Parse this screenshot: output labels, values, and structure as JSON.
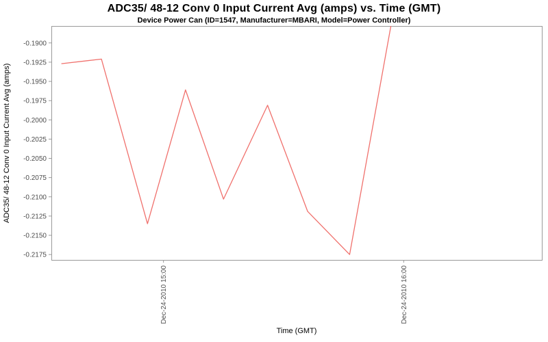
{
  "chart_data": {
    "type": "line",
    "title": "ADC35/ 48-12 Conv 0 Input Current Avg (amps) vs. Time (GMT)",
    "subtitle": "Device Power Can (ID=1547, Manufacturer=MBARI, Model=Power Controller)",
    "xlabel": "Time (GMT)",
    "ylabel": "ADC35/ 48-12 Conv 0 Input Current Avg (amps)",
    "legend": "none",
    "grid": false,
    "x_axis_note": "x values are minutes after Dec-24-2010 14:00 GMT; last point rises above the visible axis range and is clipped at the plot top",
    "xlim": [
      32,
      154.5
    ],
    "ylim": [
      -0.2182,
      -0.1878
    ],
    "x_ticks": [
      {
        "x": 60,
        "label": "Dec-24-2010 15:00"
      },
      {
        "x": 120,
        "label": "Dec-24-2010 16:00"
      }
    ],
    "y_tick_labels": [
      "-0.1900",
      "-0.1925",
      "-0.1950",
      "-0.1975",
      "-0.2000",
      "-0.2025",
      "-0.2050",
      "-0.2075",
      "-0.2100",
      "-0.2125",
      "-0.2150",
      "-0.2175"
    ],
    "series": [
      {
        "name": "ADC35/ 48-12 Conv 0 Input Current Avg",
        "color": "#f0706c",
        "x": [
          34.5,
          44.5,
          56.0,
          65.5,
          75.0,
          86.0,
          96.0,
          106.5,
          117.5
        ],
        "y": [
          -0.1927,
          -0.1921,
          -0.2135,
          -0.1961,
          -0.2103,
          -0.1981,
          -0.2119,
          -0.2175,
          -0.1858
        ]
      }
    ],
    "colors": {
      "background": "#ffffff",
      "plot_border": "#999999",
      "tick_text": "#4d4d4d",
      "line": "#f0706c"
    }
  }
}
